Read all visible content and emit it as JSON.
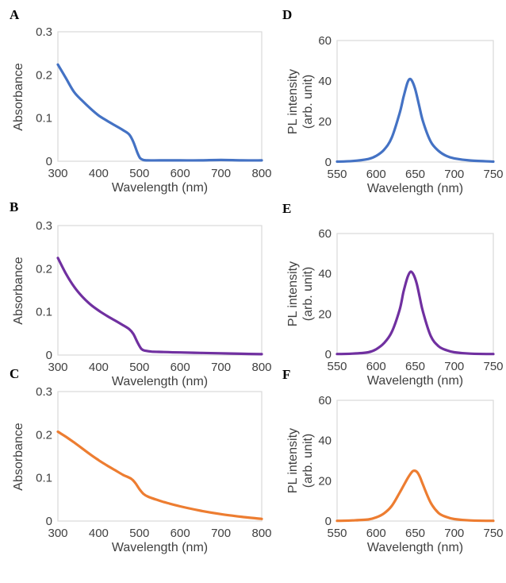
{
  "chart_data": [
    {
      "panel": "A",
      "type": "line",
      "xlabel": "Wavelength (nm)",
      "ylabel": "Absorbance",
      "xlim": [
        300,
        800
      ],
      "ylim": [
        0,
        0.3
      ],
      "xticks": [
        "300",
        "400",
        "500",
        "600",
        "700",
        "800"
      ],
      "yticks": [
        "0",
        "0.1",
        "0.2",
        "0.3"
      ],
      "grid": false,
      "series": [
        {
          "color": "#4472c4",
          "x": [
            300,
            320,
            340,
            360,
            380,
            400,
            420,
            440,
            460,
            475,
            485,
            495,
            502,
            510,
            520,
            550,
            600,
            650,
            700,
            750,
            800
          ],
          "y": [
            0.224,
            0.192,
            0.16,
            0.14,
            0.122,
            0.106,
            0.094,
            0.083,
            0.072,
            0.062,
            0.045,
            0.02,
            0.007,
            0.003,
            0.002,
            0.002,
            0.002,
            0.002,
            0.003,
            0.002,
            0.002
          ]
        }
      ]
    },
    {
      "panel": "B",
      "type": "line",
      "xlabel": "Wavelength (nm)",
      "ylabel": "Absorbance",
      "xlim": [
        300,
        800
      ],
      "ylim": [
        0,
        0.3
      ],
      "xticks": [
        "300",
        "400",
        "500",
        "600",
        "700",
        "800"
      ],
      "yticks": [
        "0",
        "0.1",
        "0.2",
        "0.3"
      ],
      "grid": false,
      "series": [
        {
          "color": "#7030a0",
          "x": [
            300,
            320,
            340,
            360,
            380,
            400,
            420,
            440,
            460,
            475,
            485,
            495,
            505,
            515,
            530,
            560,
            600,
            650,
            700,
            750,
            800
          ],
          "y": [
            0.225,
            0.188,
            0.158,
            0.135,
            0.117,
            0.103,
            0.091,
            0.08,
            0.069,
            0.06,
            0.049,
            0.03,
            0.014,
            0.01,
            0.008,
            0.007,
            0.006,
            0.005,
            0.004,
            0.003,
            0.002
          ]
        }
      ]
    },
    {
      "panel": "C",
      "type": "line",
      "xlabel": "Wavelength (nm)",
      "ylabel": "Absorbance",
      "xlim": [
        300,
        800
      ],
      "ylim": [
        0,
        0.3
      ],
      "xticks": [
        "300",
        "400",
        "500",
        "600",
        "700",
        "800"
      ],
      "yticks": [
        "0",
        "0.1",
        "0.2",
        "0.3"
      ],
      "grid": false,
      "series": [
        {
          "color": "#ed7d31",
          "x": [
            300,
            320,
            340,
            360,
            380,
            400,
            420,
            440,
            460,
            480,
            490,
            500,
            510,
            520,
            540,
            560,
            600,
            650,
            700,
            750,
            800
          ],
          "y": [
            0.207,
            0.195,
            0.182,
            0.168,
            0.154,
            0.141,
            0.129,
            0.118,
            0.107,
            0.098,
            0.088,
            0.074,
            0.063,
            0.057,
            0.05,
            0.044,
            0.034,
            0.024,
            0.016,
            0.01,
            0.005
          ]
        }
      ]
    },
    {
      "panel": "D",
      "type": "line",
      "xlabel": "Wavelength (nm)",
      "ylabel": "PL intensity (arb. unit)",
      "xlim": [
        550,
        750
      ],
      "ylim": [
        0,
        60
      ],
      "xticks": [
        "550",
        "600",
        "650",
        "700",
        "750"
      ],
      "yticks": [
        "0",
        "20",
        "40",
        "60"
      ],
      "grid": false,
      "series": [
        {
          "color": "#4472c4",
          "x": [
            550,
            570,
            590,
            600,
            610,
            620,
            630,
            635,
            640,
            643,
            646,
            650,
            655,
            660,
            670,
            680,
            690,
            700,
            720,
            750
          ],
          "y": [
            0.2,
            0.5,
            1.5,
            3,
            6,
            12,
            24,
            32,
            39,
            41,
            40,
            36,
            28,
            20,
            10,
            5.5,
            3,
            1.8,
            0.8,
            0.2
          ]
        }
      ]
    },
    {
      "panel": "E",
      "type": "line",
      "xlabel": "Wavelength (nm)",
      "ylabel": "PL intensity (arb. unit)",
      "xlim": [
        550,
        750
      ],
      "ylim": [
        0,
        60
      ],
      "xticks": [
        "550",
        "600",
        "650",
        "700",
        "750"
      ],
      "yticks": [
        "0",
        "20",
        "40",
        "60"
      ],
      "grid": false,
      "series": [
        {
          "color": "#7030a0",
          "x": [
            550,
            570,
            590,
            600,
            610,
            620,
            630,
            635,
            640,
            644,
            648,
            652,
            656,
            660,
            670,
            680,
            690,
            700,
            720,
            750
          ],
          "y": [
            0.1,
            0.3,
            1.0,
            2.5,
            5.5,
            11,
            22,
            31,
            38,
            41,
            39.5,
            35,
            28,
            21,
            9,
            4,
            2,
            1,
            0.3,
            0.1
          ]
        }
      ]
    },
    {
      "panel": "F",
      "type": "line",
      "xlabel": "Wavelength (nm)",
      "ylabel": "PL intensity (arb. unit)",
      "xlim": [
        550,
        750
      ],
      "ylim": [
        0,
        60
      ],
      "xticks": [
        "550",
        "600",
        "650",
        "700",
        "750"
      ],
      "yticks": [
        "0",
        "20",
        "40",
        "60"
      ],
      "grid": false,
      "series": [
        {
          "color": "#ed7d31",
          "x": [
            550,
            570,
            590,
            600,
            610,
            620,
            630,
            640,
            645,
            648,
            652,
            656,
            660,
            670,
            680,
            690,
            700,
            720,
            750
          ],
          "y": [
            0.1,
            0.3,
            0.8,
            1.8,
            3.8,
            7.5,
            14,
            21,
            24,
            25,
            24.5,
            22,
            18,
            9,
            4,
            2,
            1,
            0.3,
            0.1
          ]
        }
      ]
    }
  ]
}
